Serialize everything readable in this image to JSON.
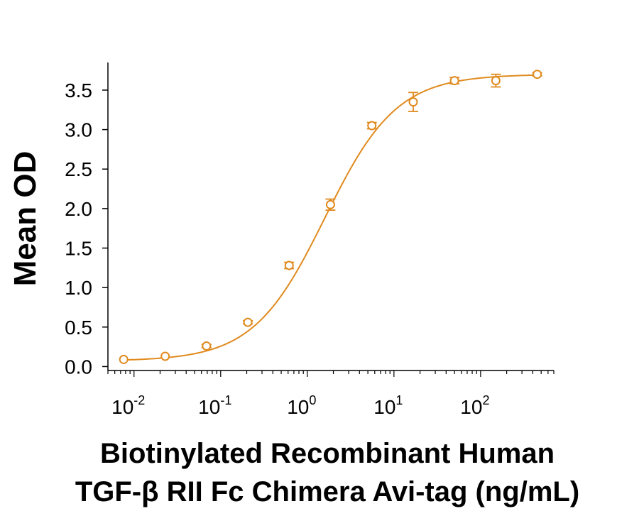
{
  "chart_data": {
    "type": "scatter",
    "xlabel_lines": [
      "Biotinylated Recombinant Human",
      "TGF-β RII Fc Chimera Avi-tag (ng/mL)"
    ],
    "ylabel": "Mean OD",
    "x_scale": "log",
    "xlim": [
      0.005,
      700
    ],
    "ylim": [
      -0.05,
      3.85
    ],
    "x_ticks": [
      {
        "value": 0.01,
        "base": "10",
        "exp": "-2"
      },
      {
        "value": 0.1,
        "base": "10",
        "exp": "-1"
      },
      {
        "value": 1,
        "base": "10",
        "exp": "0"
      },
      {
        "value": 10,
        "base": "10",
        "exp": "1"
      },
      {
        "value": 100,
        "base": "10",
        "exp": "2"
      }
    ],
    "y_ticks": [
      "0.0",
      "0.5",
      "1.0",
      "1.5",
      "2.0",
      "2.5",
      "3.0",
      "3.5"
    ],
    "color": "#E08A1E",
    "series": [
      {
        "points": [
          {
            "x": 0.0076,
            "y": 0.09,
            "err": 0.0
          },
          {
            "x": 0.0229,
            "y": 0.13,
            "err": 0.0
          },
          {
            "x": 0.0686,
            "y": 0.26,
            "err": 0.02
          },
          {
            "x": 0.206,
            "y": 0.56,
            "err": 0.02
          },
          {
            "x": 0.617,
            "y": 1.28,
            "err": 0.04
          },
          {
            "x": 1.85,
            "y": 2.05,
            "err": 0.07
          },
          {
            "x": 5.56,
            "y": 3.05,
            "err": 0.04
          },
          {
            "x": 16.7,
            "y": 3.35,
            "err": 0.12
          },
          {
            "x": 50,
            "y": 3.62,
            "err": 0.04
          },
          {
            "x": 150,
            "y": 3.62,
            "err": 0.08
          },
          {
            "x": 450,
            "y": 3.7,
            "err": 0.02
          }
        ],
        "fit": {
          "model": "4PL",
          "bottom": 0.07,
          "top": 3.7,
          "ec50": 1.6,
          "hill": 1.05
        }
      }
    ]
  }
}
